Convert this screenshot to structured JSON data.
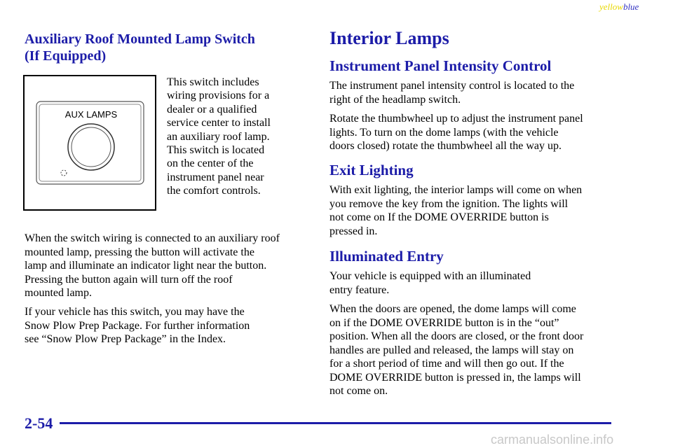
{
  "header": {
    "mark_yellow": "yellow",
    "mark_blue": "blue"
  },
  "left": {
    "title": [
      "Auxiliary Roof Mounted Lamp Switch",
      "(If Equipped)"
    ],
    "figure": {
      "label": "AUX LAMPS"
    },
    "figure_text": [
      "This switch includes",
      "wiring provisions for a",
      "dealer or a qualified",
      "service center to install",
      "an auxiliary roof lamp.",
      "This switch is located",
      "on the center of the",
      "instrument panel near",
      "the comfort controls."
    ],
    "paragraphs": [
      [
        "When the switch wiring is connected to an auxiliary roof",
        "mounted lamp, pressing the button will activate the",
        "lamp and illuminate an indicator light near the button.",
        "Pressing the button again will turn off the roof",
        "mounted lamp."
      ],
      [
        "If your vehicle has this switch, you may have the",
        "Snow Plow Prep Package. For further information",
        "see “Snow Plow Prep Package” in the Index."
      ]
    ]
  },
  "right": {
    "title": "Interior Lamps",
    "sections": [
      {
        "heading": "Instrument Panel Intensity Control",
        "paragraphs": [
          [
            "The instrument panel intensity control is located to the",
            "right of the headlamp switch."
          ],
          [
            "Rotate the thumbwheel up to adjust the instrument panel",
            "lights. To turn on the dome lamps (with the vehicle",
            "doors closed) rotate the thumbwheel all the way up."
          ]
        ]
      },
      {
        "heading": "Exit Lighting",
        "paragraphs": [
          [
            "With exit lighting, the interior lamps will come on when",
            "you remove the key from the ignition. The lights will",
            "not come on If the DOME OVERRIDE button is",
            "pressed in."
          ]
        ]
      },
      {
        "heading": "Illuminated Entry",
        "paragraphs": [
          [
            "Your vehicle is equipped with an illuminated",
            "entry feature."
          ],
          [
            "When the doors are opened, the dome lamps will come",
            "on if the DOME OVERRIDE button is in the “out”",
            "position. When all the doors are closed, or the front door",
            "handles are pulled and released, the lamps will stay on",
            "for a short period of time and will then go out. If the",
            "DOME OVERRIDE button is pressed in, the lamps will",
            "not come on."
          ]
        ]
      }
    ]
  },
  "footer": {
    "page_number": "2-54",
    "watermark": "carmanualsonline.info"
  }
}
